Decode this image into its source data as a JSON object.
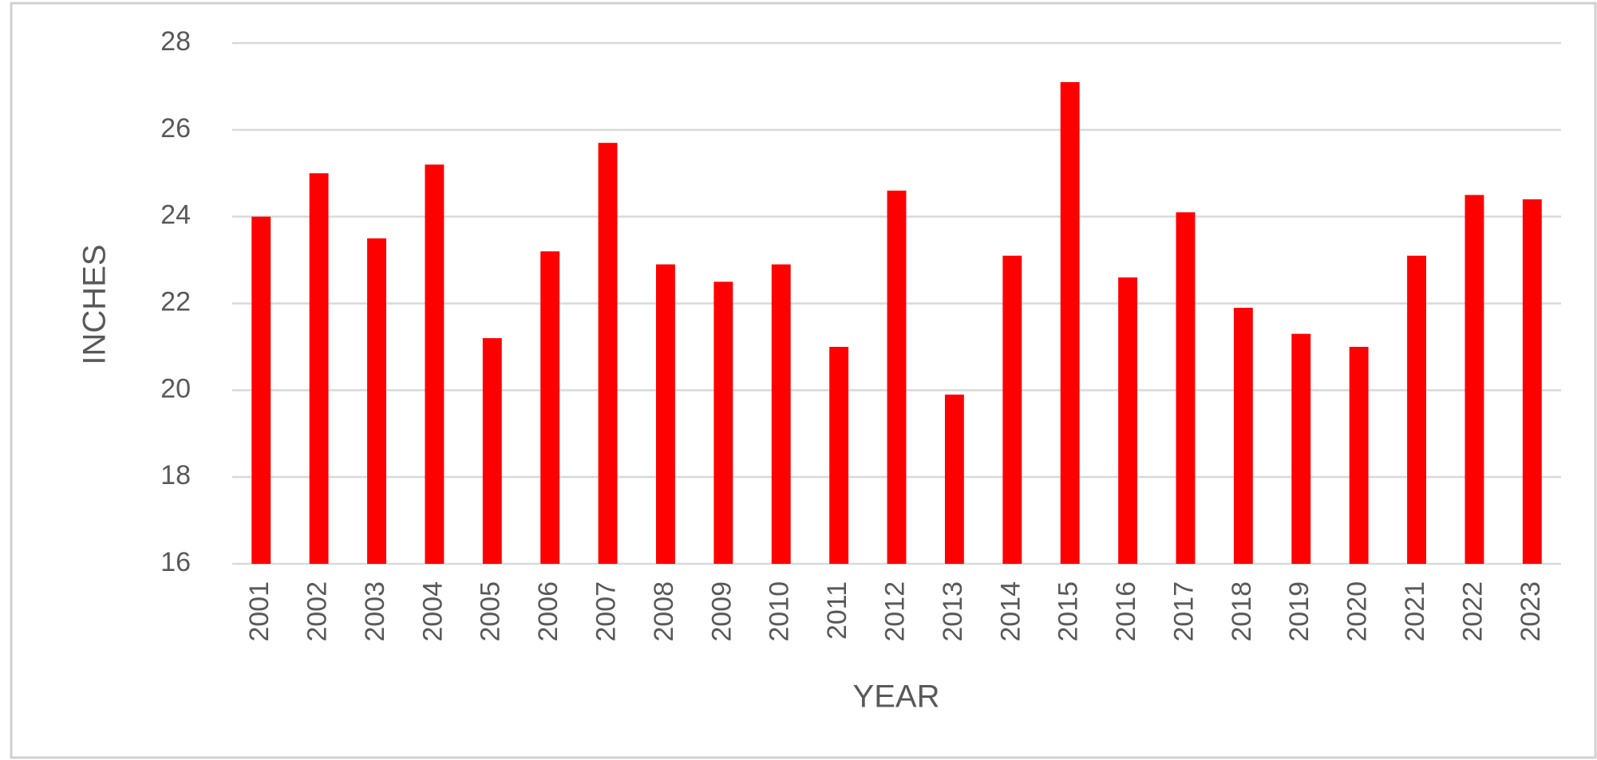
{
  "chart_data": {
    "type": "bar",
    "x_label": "YEAR",
    "y_label": "INCHES",
    "categories": [
      "2001",
      "2002",
      "2003",
      "2004",
      "2005",
      "2006",
      "2007",
      "2008",
      "2009",
      "2010",
      "2011",
      "2012",
      "2013",
      "2014",
      "2015",
      "2016",
      "2017",
      "2018",
      "2019",
      "2020",
      "2021",
      "2022",
      "2023"
    ],
    "values": [
      24.0,
      25.0,
      23.5,
      25.2,
      21.2,
      23.2,
      25.7,
      22.9,
      22.5,
      22.9,
      21.0,
      24.6,
      19.9,
      23.1,
      27.1,
      22.6,
      24.1,
      21.9,
      21.3,
      21.0,
      23.1,
      24.5,
      24.4
    ],
    "color": "#ff0000",
    "ylim": [
      16,
      28
    ],
    "yticks": [
      16,
      18,
      20,
      22,
      24,
      26,
      28
    ],
    "grid": true
  }
}
